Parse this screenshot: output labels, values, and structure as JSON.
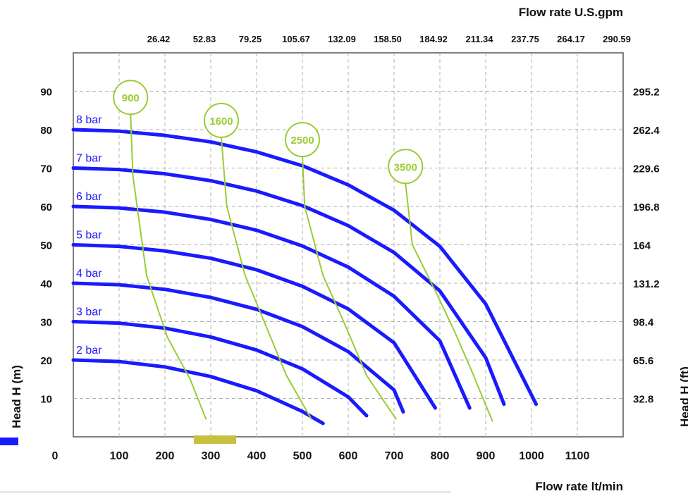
{
  "chart_data": {
    "type": "line",
    "top_axis_title": "Flow rate U.S.gpm",
    "bottom_axis_title": "Flow rate  lt/min",
    "left_axis_title": "Head H (m)",
    "right_axis_title": "Head H (ft)",
    "origin_label": "0",
    "xlim": [
      0,
      1200
    ],
    "ylim": [
      0,
      100
    ],
    "grid": true,
    "x_ticks": [
      100,
      200,
      300,
      400,
      500,
      600,
      700,
      800,
      900,
      1000,
      1100
    ],
    "x_tick_labels": [
      "100",
      "200",
      "300",
      "400",
      "500",
      "600",
      "700",
      "800",
      "900",
      "1000",
      "1100"
    ],
    "top_ticks": [
      100,
      200,
      300,
      400,
      500,
      600,
      700,
      800,
      900,
      1000,
      1100
    ],
    "top_tick_labels": [
      "26.42",
      "52.83",
      "79.25",
      "105.67",
      "132.09",
      "158.50",
      "184.92",
      "211.34",
      "237.75",
      "264.17",
      "290.59"
    ],
    "y_ticks": [
      10,
      20,
      30,
      40,
      50,
      60,
      70,
      80,
      90
    ],
    "y_tick_labels": [
      "10",
      "20",
      "30",
      "40",
      "50",
      "60",
      "70",
      "80",
      "90"
    ],
    "right_ticks": [
      10,
      20,
      30,
      40,
      50,
      60,
      70,
      80,
      90
    ],
    "right_tick_labels": [
      "32.8",
      "65.6",
      "98.4",
      "131.2",
      "164",
      "196.8",
      "229.6",
      "262.4",
      "295.2"
    ],
    "series": [
      {
        "name": "2 bar",
        "x": [
          0,
          100,
          200,
          300,
          400,
          500,
          545
        ],
        "y": [
          20,
          19.6,
          18.2,
          15.7,
          12,
          6.6,
          3.5
        ]
      },
      {
        "name": "3 bar",
        "x": [
          0,
          100,
          200,
          300,
          400,
          500,
          600,
          640
        ],
        "y": [
          30,
          29.6,
          28.3,
          26,
          22.6,
          17.7,
          10.4,
          5.5
        ]
      },
      {
        "name": "4 bar",
        "x": [
          0,
          100,
          200,
          300,
          400,
          500,
          600,
          700,
          720
        ],
        "y": [
          40,
          39.6,
          38.4,
          36.3,
          33.2,
          28.7,
          22.2,
          12.2,
          6.5
        ]
      },
      {
        "name": "5 bar",
        "x": [
          0,
          100,
          200,
          300,
          400,
          500,
          600,
          700,
          790
        ],
        "y": [
          50,
          49.6,
          48.4,
          46.5,
          43.5,
          39.2,
          33.3,
          24.5,
          7.5
        ]
      },
      {
        "name": "6 bar",
        "x": [
          0,
          100,
          200,
          300,
          400,
          500,
          600,
          700,
          800,
          865
        ],
        "y": [
          60,
          59.6,
          58.5,
          56.6,
          53.8,
          49.7,
          44.2,
          36.6,
          25,
          7.5
        ]
      },
      {
        "name": "7 bar",
        "x": [
          0,
          100,
          200,
          300,
          400,
          500,
          600,
          700,
          800,
          900,
          940
        ],
        "y": [
          70,
          69.6,
          68.5,
          66.7,
          64,
          60.2,
          55,
          48,
          38,
          20.6,
          8.5
        ]
      },
      {
        "name": "8 bar",
        "x": [
          0,
          100,
          200,
          300,
          400,
          500,
          600,
          700,
          800,
          900,
          1010
        ],
        "y": [
          80,
          79.6,
          78.5,
          76.8,
          74.2,
          70.6,
          65.6,
          59,
          49.6,
          34.6,
          8.5
        ]
      }
    ],
    "speed_curves": [
      {
        "label": "900",
        "x": [
          125,
          130,
          160,
          205,
          255,
          290
        ],
        "y": [
          84,
          68,
          42,
          26,
          15,
          4.5
        ]
      },
      {
        "label": "1600",
        "x": [
          323,
          335,
          375,
          420,
          465,
          520
        ],
        "y": [
          78,
          60,
          42,
          29,
          16,
          4.5
        ]
      },
      {
        "label": "2500",
        "x": [
          500,
          505,
          545,
          590,
          640,
          705
        ],
        "y": [
          73,
          60,
          42,
          30,
          16,
          4.5
        ]
      },
      {
        "label": "3500",
        "x": [
          725,
          740,
          790,
          830,
          870,
          915
        ],
        "y": [
          66,
          50,
          38,
          28,
          17,
          4
        ]
      }
    ],
    "colors": {
      "pressure_curve": "#1a1aff",
      "speed_curve": "#99cc33",
      "grid": "#b0b0b0",
      "frame": "#555555"
    }
  }
}
